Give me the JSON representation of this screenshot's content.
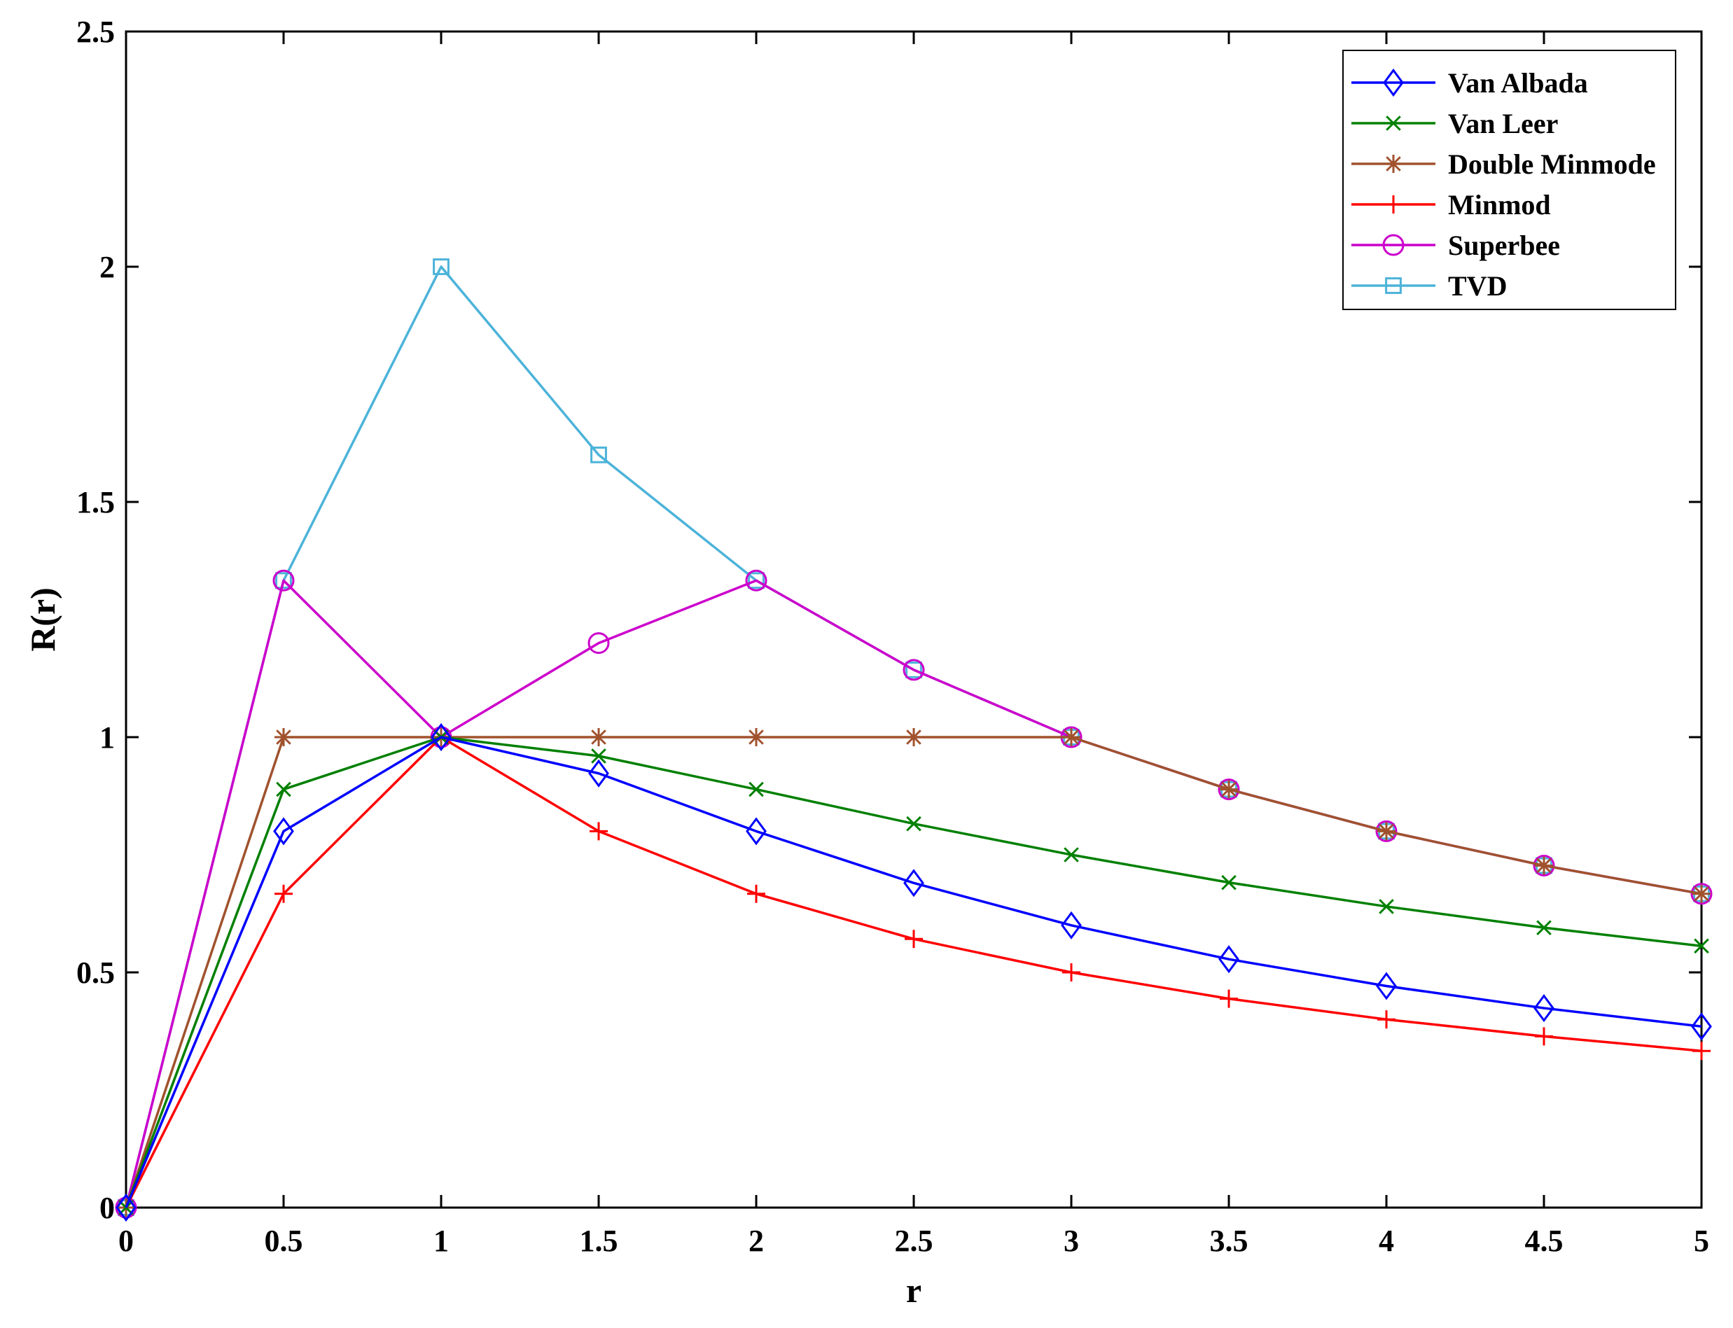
{
  "chart_data": {
    "type": "line",
    "xlabel": "r",
    "ylabel": "R(r)",
    "xlim": [
      0,
      5
    ],
    "ylim": [
      0,
      2.5
    ],
    "xticks": [
      "0",
      "0.5",
      "1",
      "1.5",
      "2",
      "2.5",
      "3",
      "3.5",
      "4",
      "4.5",
      "5"
    ],
    "yticks": [
      "0",
      "0.5",
      "1",
      "1.5",
      "2",
      "2.5"
    ],
    "grid": false,
    "legend_position": "top-right",
    "x": [
      0,
      0.5,
      1,
      1.5,
      2,
      2.5,
      3,
      3.5,
      4,
      4.5,
      5
    ],
    "series": [
      {
        "name": "Van Albada",
        "color": "#0000ff",
        "marker": "diamond",
        "values": [
          0,
          0.8,
          1,
          0.923,
          0.8,
          0.69,
          0.6,
          0.528,
          0.471,
          0.424,
          0.385
        ]
      },
      {
        "name": "Van Leer",
        "color": "#008000",
        "marker": "x",
        "values": [
          0,
          0.889,
          1,
          0.96,
          0.889,
          0.816,
          0.75,
          0.691,
          0.64,
          0.595,
          0.556
        ]
      },
      {
        "name": "Double Minmode",
        "color": "#a0522d",
        "marker": "asterisk",
        "values": [
          0,
          1,
          1,
          1,
          1,
          1,
          1,
          0.889,
          0.8,
          0.727,
          0.667
        ]
      },
      {
        "name": "Minmod",
        "color": "#ff0000",
        "marker": "plus",
        "values": [
          0,
          0.667,
          1,
          0.8,
          0.667,
          0.571,
          0.5,
          0.444,
          0.4,
          0.364,
          0.333
        ]
      },
      {
        "name": "Superbee",
        "color": "#cc00cc",
        "marker": "circle",
        "values": [
          0,
          1.333,
          1,
          1.2,
          1.333,
          1.143,
          1,
          0.889,
          0.8,
          0.727,
          0.667
        ]
      },
      {
        "name": "TVD",
        "color": "#4cb3d9",
        "marker": "square",
        "values": [
          0,
          1.333,
          2,
          1.6,
          1.333,
          1.143,
          1,
          0.889,
          0.8,
          0.727,
          0.667
        ]
      }
    ]
  }
}
